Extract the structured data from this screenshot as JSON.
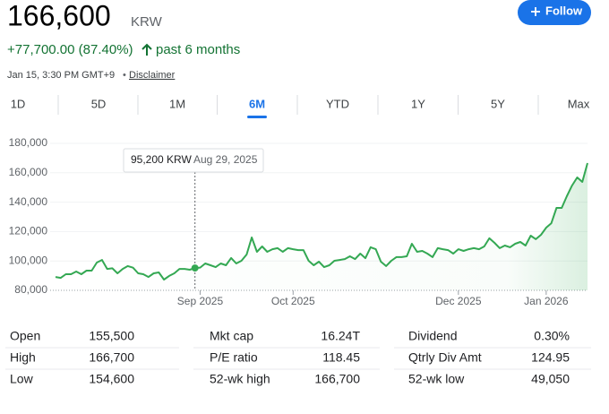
{
  "header": {
    "price": "166,600",
    "currency": "KRW",
    "follow": "Follow",
    "change": "+77,700.00 (87.40%)",
    "period": "past 6 months",
    "timestamp": "Jan 15, 3:30 PM GMT+9",
    "separator": "•",
    "disclaimer": "Disclaimer"
  },
  "tabs": {
    "items": [
      "1D",
      "5D",
      "1M",
      "6M",
      "YTD",
      "1Y",
      "5Y",
      "Max"
    ],
    "active": "6M"
  },
  "chart_data": {
    "type": "line",
    "color": "#34a853",
    "values": [
      89100,
      88500,
      91000,
      91000,
      92800,
      91000,
      93400,
      93400,
      98900,
      100700,
      94600,
      95000,
      91600,
      94600,
      96500,
      95400,
      91600,
      91000,
      89100,
      91600,
      92200,
      87300,
      89800,
      91600,
      94600,
      94600,
      94000,
      95200,
      95500,
      98300,
      97100,
      95800,
      98300,
      97100,
      102000,
      98300,
      100100,
      104400,
      116000,
      106200,
      109900,
      106200,
      108000,
      108700,
      106200,
      108700,
      108000,
      107400,
      107400,
      100100,
      97100,
      99500,
      95800,
      97100,
      100100,
      100700,
      101300,
      103200,
      101300,
      105000,
      101900,
      109300,
      108000,
      99500,
      96500,
      100100,
      102600,
      102600,
      103200,
      111700,
      106200,
      106800,
      105000,
      102600,
      108700,
      108000,
      107400,
      105000,
      108000,
      106800,
      108000,
      108700,
      108000,
      109900,
      115400,
      112300,
      108700,
      110500,
      109300,
      111700,
      112900,
      110500,
      117200,
      114800,
      117800,
      122700,
      125700,
      136100,
      136100,
      144000,
      151300,
      156800,
      153800,
      166600
    ],
    "xlim": [
      0,
      103
    ],
    "xticks": [
      {
        "value": 28,
        "label": "Sep 2025"
      },
      {
        "value": 46,
        "label": "Oct 2025"
      },
      {
        "value": 78,
        "label": "Dec 2025"
      },
      {
        "value": 95,
        "label": "Jan 2026"
      }
    ],
    "ylim": [
      80000,
      180000
    ],
    "yticks": [
      {
        "value": 80000,
        "label": "80,000"
      },
      {
        "value": 100000,
        "label": "100,000"
      },
      {
        "value": 120000,
        "label": "120,000"
      },
      {
        "value": 140000,
        "label": "140,000"
      },
      {
        "value": 160000,
        "label": "160,000"
      },
      {
        "value": 180000,
        "label": "180,000"
      }
    ],
    "grid": true,
    "tooltip": {
      "price": {
        "value": 95200,
        "label": "95,200 KRW"
      },
      "date": "Aug 29, 2025"
    }
  },
  "stats": {
    "rows": [
      [
        [
          "Open",
          "155,500"
        ],
        [
          "Mkt cap",
          "16.24T"
        ],
        [
          "Dividend",
          "0.30%"
        ]
      ],
      [
        [
          "High",
          "166,700"
        ],
        [
          "P/E ratio",
          "118.45"
        ],
        [
          "Qtrly Div Amt",
          "124.95"
        ]
      ],
      [
        [
          "Low",
          "154,600"
        ],
        [
          "52-wk high",
          "166,700"
        ],
        [
          "52-wk low",
          "49,050"
        ]
      ]
    ]
  }
}
